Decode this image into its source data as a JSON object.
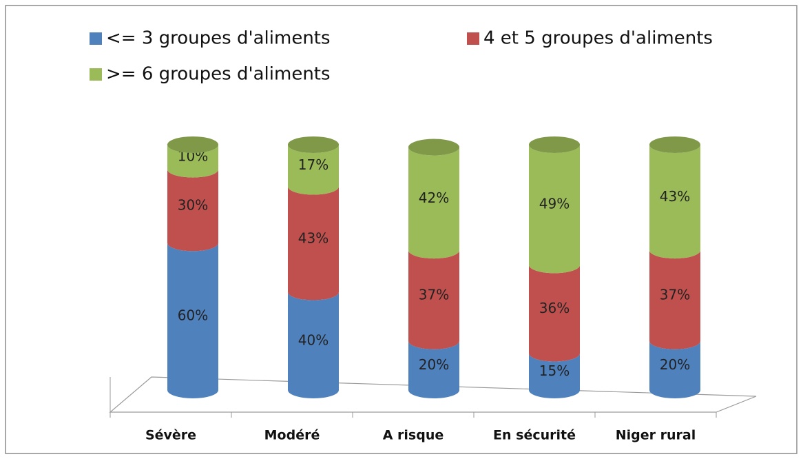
{
  "chart_data": {
    "type": "stacked_cylinder",
    "categories": [
      "Sévère",
      "Modéré",
      "A risque",
      "En sécurité",
      "Niger rural"
    ],
    "series": [
      {
        "name": "<= 3 groupes d'aliments",
        "color": "#4f81bd",
        "values": [
          60,
          40,
          20,
          15,
          20
        ],
        "value_labels": [
          "60%",
          "40%",
          "20%",
          "15%",
          "20%"
        ]
      },
      {
        "name": "4 et 5 groupes d'aliments",
        "color": "#c0504d",
        "values": [
          30,
          43,
          37,
          36,
          37
        ],
        "value_labels": [
          "30%",
          "43%",
          "37%",
          "36%",
          "37%"
        ]
      },
      {
        "name": ">= 6 groupes d'aliments",
        "color": "#9bbb59",
        "values": [
          10,
          17,
          42,
          49,
          43
        ],
        "value_labels": [
          "10%",
          "17%",
          "42%",
          "49%",
          "43%"
        ]
      }
    ]
  }
}
